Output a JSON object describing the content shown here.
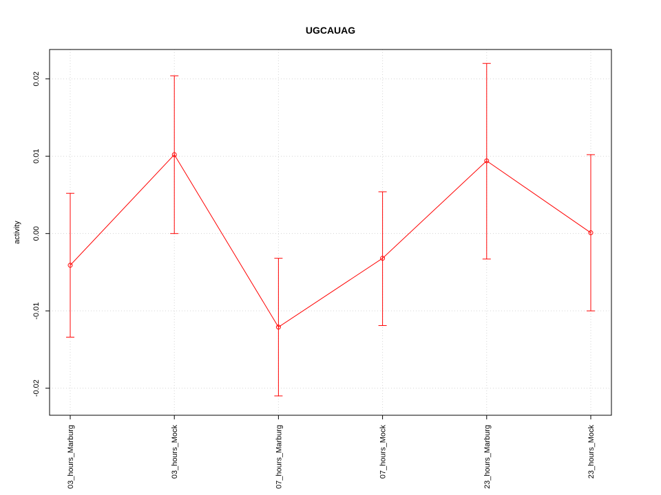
{
  "chart_data": {
    "type": "line",
    "title": "UGCAUAG",
    "xlabel": "",
    "ylabel": "activity",
    "ylim": [
      -0.0235,
      0.0238
    ],
    "yticks": [
      -0.02,
      -0.01,
      0.0,
      0.01,
      0.02
    ],
    "ytick_labels": [
      "-0.02",
      "-0.01",
      "0.00",
      "0.01",
      "0.02"
    ],
    "grid": true,
    "categories": [
      "03_hours_Marburg",
      "03_hours_Mock",
      "07_hours_Marburg",
      "07_hours_Mock",
      "23_hours_Marburg",
      "23_hours_Mock"
    ],
    "series": [
      {
        "color": "#ff0000",
        "values": [
          -0.0041,
          0.0102,
          -0.0121,
          -0.0032,
          0.0094,
          0.0001
        ],
        "upper": [
          0.0052,
          0.0204,
          -0.0032,
          0.0054,
          0.022,
          0.0102
        ],
        "lower": [
          -0.0134,
          0.0,
          -0.021,
          -0.0119,
          -0.0033,
          -0.01
        ]
      }
    ]
  }
}
